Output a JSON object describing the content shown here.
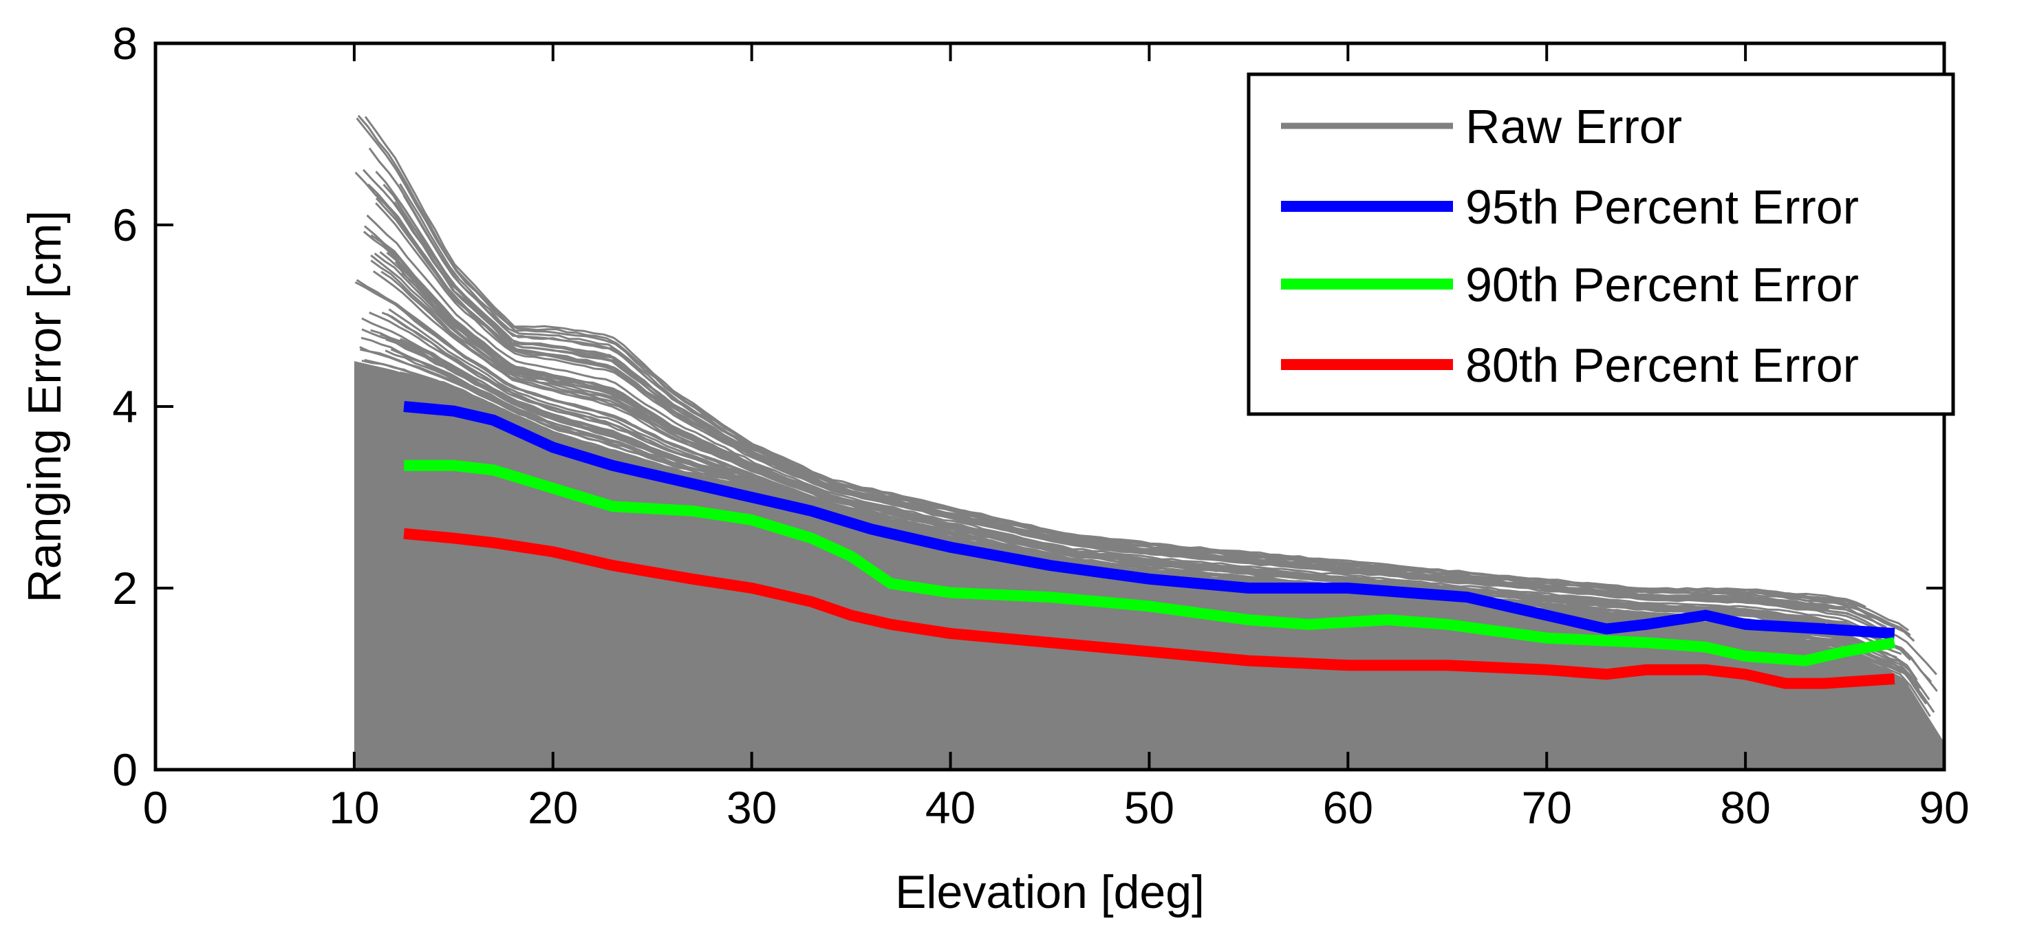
{
  "chart_data": {
    "type": "line",
    "title": "",
    "xlabel": "Elevation [deg]",
    "ylabel": "Ranging Error [cm]",
    "xlim": [
      0,
      90
    ],
    "ylim": [
      0,
      8
    ],
    "xticks": [
      0,
      10,
      20,
      30,
      40,
      50,
      60,
      70,
      80,
      90
    ],
    "yticks": [
      0,
      2,
      4,
      6,
      8
    ],
    "xtick_labels": [
      "0",
      "10",
      "20",
      "30",
      "40",
      "50",
      "60",
      "70",
      "80",
      "90"
    ],
    "ytick_labels": [
      "0",
      "2",
      "4",
      "6",
      "8"
    ],
    "grid": false,
    "legend_position": "top-right",
    "raw_error_envelope": {
      "name": "Raw Error",
      "color": "#808080",
      "x": [
        10,
        12,
        15,
        18,
        20,
        23,
        26,
        30,
        34,
        38,
        42,
        46,
        50,
        55,
        60,
        65,
        70,
        75,
        80,
        85,
        88,
        90
      ],
      "max": [
        7.4,
        6.8,
        5.6,
        4.9,
        4.9,
        4.8,
        4.2,
        3.6,
        3.2,
        3.0,
        2.8,
        2.6,
        2.5,
        2.4,
        2.3,
        2.2,
        2.1,
        2.0,
        2.0,
        1.9,
        1.6,
        1.2
      ],
      "dense_top": [
        4.5,
        4.4,
        4.2,
        3.9,
        3.7,
        3.5,
        3.3,
        3.1,
        2.8,
        2.6,
        2.4,
        2.2,
        2.1,
        2.0,
        1.9,
        1.8,
        1.7,
        1.6,
        1.5,
        1.3,
        1.0,
        0.3
      ]
    },
    "series": [
      {
        "name": "95th Percent Error",
        "color": "#0000ff",
        "x": [
          12.5,
          15,
          17,
          20,
          23,
          27,
          30,
          33,
          36,
          40,
          45,
          50,
          55,
          60,
          63,
          66,
          70,
          73,
          75,
          78,
          80,
          84,
          87.5
        ],
        "values": [
          4.0,
          3.95,
          3.85,
          3.55,
          3.35,
          3.15,
          3.0,
          2.85,
          2.65,
          2.45,
          2.25,
          2.1,
          2.0,
          2.0,
          1.95,
          1.9,
          1.7,
          1.55,
          1.6,
          1.7,
          1.6,
          1.55,
          1.5
        ]
      },
      {
        "name": "90th Percent Error",
        "color": "#00ff00",
        "x": [
          12.5,
          15,
          17,
          20,
          23,
          27,
          30,
          33,
          35,
          37,
          40,
          45,
          50,
          55,
          58,
          62,
          65,
          70,
          75,
          78,
          80,
          83,
          85,
          87.5
        ],
        "values": [
          3.35,
          3.35,
          3.3,
          3.1,
          2.9,
          2.85,
          2.75,
          2.55,
          2.35,
          2.05,
          1.95,
          1.9,
          1.8,
          1.65,
          1.6,
          1.65,
          1.6,
          1.45,
          1.4,
          1.35,
          1.25,
          1.2,
          1.3,
          1.4
        ]
      },
      {
        "name": "80th Percent Error",
        "color": "#ff0000",
        "x": [
          12.5,
          15,
          17,
          20,
          23,
          27,
          30,
          33,
          35,
          37,
          40,
          45,
          50,
          55,
          60,
          65,
          70,
          73,
          75,
          78,
          80,
          82,
          84,
          87.5
        ],
        "values": [
          2.6,
          2.55,
          2.5,
          2.4,
          2.25,
          2.1,
          2.0,
          1.85,
          1.7,
          1.6,
          1.5,
          1.4,
          1.3,
          1.2,
          1.15,
          1.15,
          1.1,
          1.05,
          1.1,
          1.1,
          1.05,
          0.95,
          0.95,
          1.0
        ]
      }
    ],
    "legend": {
      "entries": [
        {
          "label": "Raw Error",
          "color": "#808080"
        },
        {
          "label": "95th Percent Error",
          "color": "#0000ff"
        },
        {
          "label": "90th Percent Error",
          "color": "#00ff00"
        },
        {
          "label": "80th Percent Error",
          "color": "#ff0000"
        }
      ]
    }
  }
}
